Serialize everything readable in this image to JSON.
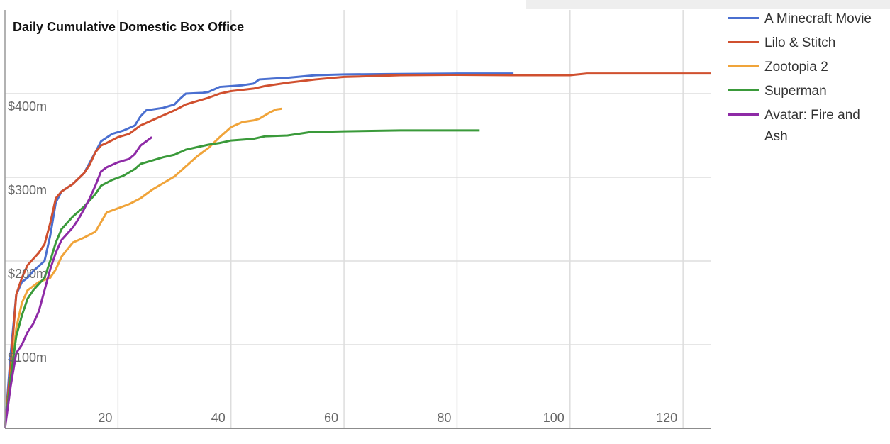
{
  "chart_data": {
    "type": "line",
    "title": "Daily Cumulative Domestic Box Office",
    "xlim": [
      0,
      125
    ],
    "xticks": [
      20,
      40,
      60,
      80,
      100,
      120
    ],
    "ylim": [
      0,
      500
    ],
    "yticks": [
      {
        "value": 100,
        "label": "$100m"
      },
      {
        "value": 200,
        "label": "$200m"
      },
      {
        "value": 300,
        "label": "$300m"
      },
      {
        "value": 400,
        "label": "$400m"
      }
    ],
    "grid": true,
    "legend": "right",
    "series": [
      {
        "name": "A Minecraft Movie",
        "color": "#4a6fd0",
        "x": [
          0,
          1,
          2,
          3,
          4,
          5,
          7,
          8,
          9,
          10,
          12,
          14,
          16,
          17,
          19,
          21,
          23,
          24,
          25,
          28,
          30,
          31,
          32,
          35,
          36,
          38,
          42,
          44,
          45,
          50,
          55,
          60,
          70,
          80,
          90
        ],
        "values": [
          0,
          88,
          160,
          175,
          180,
          188,
          200,
          230,
          270,
          283,
          292,
          305,
          330,
          343,
          352,
          356,
          362,
          373,
          380,
          383,
          387,
          394,
          400,
          401,
          402,
          408,
          410,
          412,
          417,
          419,
          422,
          423,
          423.5,
          424,
          424
        ]
      },
      {
        "name": "Lilo & Stitch",
        "color": "#d0502f",
        "x": [
          0,
          1,
          2,
          3,
          4,
          6,
          7,
          8,
          9,
          10,
          12,
          14,
          15,
          16,
          17,
          18,
          20,
          22,
          24,
          26,
          28,
          30,
          32,
          34,
          36,
          38,
          40,
          44,
          46,
          50,
          55,
          60,
          70,
          80,
          90,
          100,
          103,
          110,
          125
        ],
        "values": [
          0,
          75,
          160,
          180,
          195,
          210,
          220,
          245,
          275,
          283,
          292,
          305,
          315,
          330,
          338,
          341,
          348,
          352,
          362,
          368,
          374,
          380,
          387,
          391,
          395,
          400,
          403,
          406,
          409,
          413,
          417,
          420,
          422,
          422.5,
          422,
          422,
          424,
          424,
          424
        ]
      },
      {
        "name": "Zootopia 2",
        "color": "#f0a43a",
        "x": [
          0,
          1,
          2,
          3,
          4,
          5,
          6,
          8,
          9,
          10,
          12,
          14,
          16,
          18,
          20,
          22,
          24,
          26,
          28,
          30,
          32,
          34,
          36,
          38,
          40,
          42,
          44,
          45,
          47,
          48,
          49
        ],
        "values": [
          0,
          60,
          120,
          150,
          165,
          170,
          175,
          180,
          190,
          205,
          222,
          228,
          235,
          258,
          263,
          268,
          275,
          285,
          293,
          301,
          313,
          325,
          335,
          348,
          360,
          366,
          368,
          370,
          378,
          381,
          382
        ]
      },
      {
        "name": "Superman",
        "color": "#3a9a3a",
        "x": [
          0,
          1,
          2,
          3,
          4,
          5,
          7,
          8,
          9,
          10,
          12,
          14,
          16,
          17,
          19,
          21,
          23,
          24,
          26,
          28,
          30,
          32,
          34,
          36,
          38,
          40,
          44,
          46,
          50,
          52,
          54,
          60,
          70,
          80,
          84
        ],
        "values": [
          0,
          60,
          110,
          135,
          155,
          165,
          180,
          200,
          222,
          238,
          253,
          265,
          280,
          290,
          297,
          302,
          310,
          316,
          320,
          324,
          327,
          333,
          336,
          339,
          341,
          344,
          346,
          349,
          350,
          352,
          354,
          355,
          356,
          356,
          356
        ]
      },
      {
        "name": "Avatar: Fire and Ash",
        "color": "#8e2aa6",
        "x": [
          0,
          1,
          2,
          3,
          4,
          5,
          6,
          7,
          8,
          9,
          10,
          12,
          13,
          14,
          15,
          16,
          17,
          18,
          20,
          22,
          23,
          24,
          25,
          26
        ],
        "values": [
          0,
          50,
          90,
          100,
          115,
          125,
          140,
          165,
          190,
          210,
          225,
          240,
          250,
          262,
          275,
          290,
          307,
          312,
          318,
          322,
          328,
          338,
          343,
          348
        ]
      }
    ]
  }
}
